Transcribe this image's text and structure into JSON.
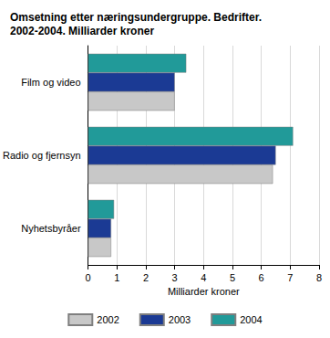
{
  "chart_data": {
    "type": "bar",
    "orientation": "horizontal",
    "title": "Omsetning etter næringsundergruppe. Bedrifter.\n2002-2004. Milliarder kroner",
    "x_label": "Milliarder kroner",
    "categories": [
      "Film og video",
      "Radio og fjernsyn",
      "Nyhetsbyråer"
    ],
    "series": [
      {
        "name": "2002",
        "color": "#c8c8c8",
        "values": [
          3.0,
          6.4,
          0.8
        ]
      },
      {
        "name": "2003",
        "color": "#1b3a94",
        "values": [
          3.0,
          6.5,
          0.8
        ]
      },
      {
        "name": "2004",
        "color": "#219a99",
        "values": [
          3.4,
          7.1,
          0.9
        ]
      }
    ],
    "xlim": [
      0,
      8
    ],
    "xticks": [
      0,
      1,
      2,
      3,
      4,
      5,
      6,
      7,
      8
    ],
    "grid": true,
    "legend": "bottom"
  }
}
